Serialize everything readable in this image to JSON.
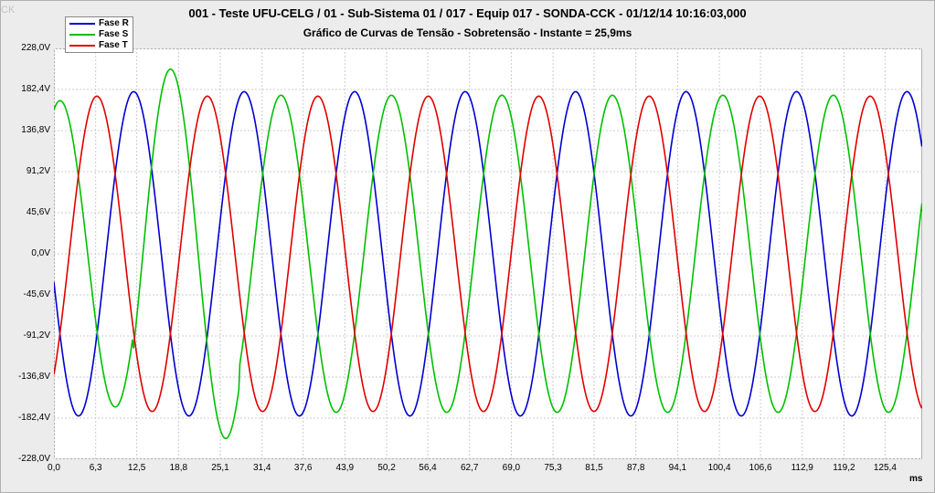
{
  "watermark": "CK",
  "title_main": "001 - Teste UFU-CELG / 01 - Sub-Sistema 01 / 017 - Equip 017 - SONDA-CCK - 01/12/14 10:16:03,000",
  "title_sub": "Gráfico de Curvas de Tensão - Sobretensão - Instante = 25,9ms",
  "legend": {
    "series": [
      {
        "label": "Fase R",
        "color": "#0000d0"
      },
      {
        "label": "Fase S",
        "color": "#00c000"
      },
      {
        "label": "Fase T",
        "color": "#e00000"
      }
    ]
  },
  "chart": {
    "type": "line",
    "background_color": "#ffffff",
    "grid_color": "#cccccc",
    "axis_color": "#606060",
    "x_unit_label": "ms",
    "font_size": 10,
    "line_width": 1.6,
    "xlim": [
      0,
      131
    ],
    "ylim": [
      -228,
      228
    ],
    "xticks": [
      0.0,
      6.3,
      12.5,
      18.8,
      25.1,
      31.4,
      37.6,
      43.9,
      50.2,
      56.4,
      62.7,
      69,
      75.3,
      81.5,
      87.8,
      94.1,
      100.4,
      106.6,
      112.9,
      119.2,
      125.4
    ],
    "xtick_labels": [
      "0,0",
      "6,3",
      "12,5",
      "18,8",
      "25,1",
      "31,4",
      "37,6",
      "43,9",
      "50,2",
      "56,4",
      "62,7",
      "69,0",
      "75,3",
      "81,5",
      "87,8",
      "94,1",
      "100,4",
      "106,6",
      "112,9",
      "119,2",
      "125,4"
    ],
    "yticks": [
      -228.0,
      -182.4,
      -136.8,
      -91.2,
      -45.6,
      0.0,
      45.6,
      91.2,
      136.8,
      182.4,
      228.0
    ],
    "ytick_labels": [
      "-228,0V",
      "-182,4V",
      "-136,8V",
      "-91,2V",
      "-45,6V",
      "0,0V",
      "45,6V",
      "91,2V",
      "136,8V",
      "182,4V",
      "228,0V"
    ],
    "series": [
      {
        "name": "Fase R",
        "color": "#0000d0",
        "freq_hz": 60,
        "phase_deg": 190,
        "segments": [
          {
            "t0": 0,
            "t1": 131,
            "amp": 180
          }
        ]
      },
      {
        "name": "Fase S",
        "color": "#00c000",
        "freq_hz": 60,
        "phase_deg": 70,
        "segments": [
          {
            "t0": 0,
            "t1": 12,
            "amp": 170
          },
          {
            "t0": 12,
            "t1": 28,
            "amp": 205
          },
          {
            "t0": 28,
            "t1": 131,
            "amp": 176
          }
        ]
      },
      {
        "name": "Fase T",
        "color": "#e00000",
        "freq_hz": 60,
        "phase_deg": -50,
        "segments": [
          {
            "t0": 0,
            "t1": 131,
            "amp": 175
          }
        ]
      }
    ]
  }
}
